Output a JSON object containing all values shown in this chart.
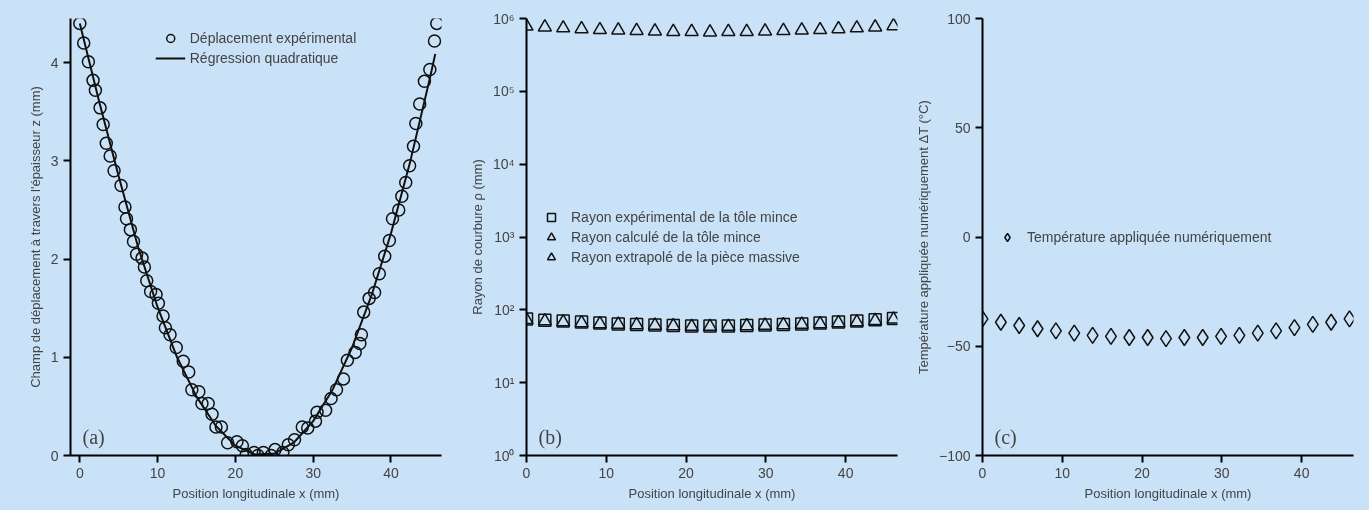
{
  "chart_data": [
    {
      "type": "scatter",
      "xlabel": "Position longitudinale x (mm)",
      "ylabel": "Champ de déplacement à travers l'épaisseur z (mm)",
      "annotations": [
        "(a)"
      ],
      "xlim": [
        -1.2,
        46.5
      ],
      "ylim": [
        0,
        4.45
      ],
      "xticks": [
        0,
        10,
        20,
        30,
        40
      ],
      "yticks": [
        0,
        1,
        2,
        3,
        4
      ],
      "grid": false,
      "legend": "top",
      "series": [
        {
          "name": "Déplacement expérimental",
          "marker": "circle",
          "color": "#111111",
          "x": [
            0,
            0.5,
            1.1,
            1.7,
            2.0,
            2.6,
            3.0,
            3.4,
            3.9,
            4.4,
            5.3,
            5.8,
            6.0,
            6.5,
            6.9,
            7.3,
            8.0,
            8.3,
            8.6,
            9.1,
            9.8,
            10.1,
            10.7,
            11.0,
            11.6,
            12.4,
            13.3,
            14.0,
            14.4,
            15.3,
            15.7,
            16.5,
            17.0,
            17.5,
            18.2,
            19.0,
            20.2,
            20.9,
            21.4,
            22.4,
            22.9,
            23.6,
            24.6,
            25.1,
            26.1,
            26.8,
            27.6,
            28.6,
            29.3,
            30.3,
            30.5,
            31.6,
            32.3,
            33.0,
            33.9,
            34.4,
            35.4,
            36.0,
            36.2,
            36.5,
            37.2,
            37.9,
            38.5,
            39.2,
            39.8,
            40.2,
            41.0,
            41.4,
            41.9,
            42.4,
            42.9,
            43.2,
            43.7,
            44.3,
            45.0,
            45.6,
            45.9
          ],
          "values": [
            4.4,
            4.2,
            4.01,
            3.82,
            3.72,
            3.54,
            3.37,
            3.18,
            3.05,
            2.9,
            2.75,
            2.53,
            2.41,
            2.3,
            2.18,
            2.05,
            2.01,
            1.92,
            1.78,
            1.67,
            1.64,
            1.55,
            1.42,
            1.3,
            1.23,
            1.1,
            0.96,
            0.85,
            0.67,
            0.65,
            0.53,
            0.53,
            0.42,
            0.29,
            0.29,
            0.13,
            0.14,
            0.1,
            0.01,
            0.03,
            0,
            0.03,
            0,
            0.06,
            0.03,
            0.11,
            0.16,
            0.29,
            0.28,
            0.35,
            0.44,
            0.46,
            0.58,
            0.67,
            0.78,
            0.97,
            1.05,
            1.14,
            1.23,
            1.46,
            1.6,
            1.66,
            1.85,
            2.03,
            2.19,
            2.41,
            2.5,
            2.64,
            2.78,
            2.95,
            3.15,
            3.38,
            3.58,
            3.81,
            3.93,
            4.22,
            4.4
          ]
        },
        {
          "name": "Régression quadratique",
          "type": "line",
          "line_style": "solid",
          "color": "#111111",
          "x": [
            0,
            2.5,
            5,
            7.5,
            10,
            12.5,
            15,
            17.5,
            20,
            22.5,
            25,
            27.5,
            30,
            32.5,
            35,
            37.5,
            40,
            42.5,
            45,
            45.7
          ],
          "values": [
            4.4,
            3.6,
            2.84,
            2.12,
            1.51,
            1.0,
            0.6,
            0.3,
            0.1,
            0.01,
            0.02,
            0.13,
            0.35,
            0.67,
            1.1,
            1.63,
            2.26,
            3.0,
            3.84,
            4.09
          ]
        }
      ]
    },
    {
      "type": "scatter",
      "xlabel": "Position longitudinale x (mm)",
      "ylabel": "Rayon de courbure ρ (mm)",
      "annotations": [
        "(b)"
      ],
      "log": "y",
      "xlim": [
        0,
        46.5
      ],
      "ylim": [
        1,
        1000000
      ],
      "xticks": [
        0,
        10,
        20,
        30,
        40
      ],
      "yticks": [
        {
          "value": 1,
          "label": "10⁰"
        },
        {
          "value": 10,
          "label": "10¹"
        },
        {
          "value": 100,
          "label": "10²"
        },
        {
          "value": 1000,
          "label": "10³"
        },
        {
          "value": 10000,
          "label": "10⁴"
        },
        {
          "value": 100000,
          "label": "10⁵"
        },
        {
          "value": 1000000,
          "label": "10⁶"
        }
      ],
      "grid": false,
      "legend": "left",
      "x": [
        0,
        2.3,
        4.6,
        6.9,
        9.2,
        11.5,
        13.8,
        16.1,
        18.4,
        20.7,
        23.0,
        25.3,
        27.6,
        29.9,
        32.2,
        34.5,
        36.8,
        39.1,
        41.4,
        43.7,
        46.0
      ],
      "series": [
        {
          "name": "Rayon expérimental de la tôle mince",
          "marker": "square",
          "color": "#111111",
          "values": [
            75,
            72,
            70,
            68,
            66,
            64,
            63,
            62,
            61,
            60,
            60,
            60,
            61,
            62,
            63,
            64,
            66,
            68,
            70,
            73,
            76
          ]
        },
        {
          "name": "Rayon calculé de la tôle mince",
          "marker": "triangle",
          "color": "#111111",
          "values": [
            73,
            70,
            68,
            66,
            64,
            63,
            62,
            61,
            60,
            59,
            59,
            59,
            60,
            61,
            62,
            63,
            64,
            66,
            68,
            71,
            74
          ]
        },
        {
          "name": "Rayon extrapolé de la pièce massive",
          "marker": "triangle",
          "color": "#111111",
          "values": [
            780000,
            760000,
            740000,
            720000,
            700000,
            690000,
            680000,
            670000,
            660000,
            660000,
            650000,
            660000,
            660000,
            670000,
            680000,
            690000,
            700000,
            720000,
            740000,
            760000,
            790000
          ]
        }
      ]
    },
    {
      "type": "scatter",
      "xlabel": "Position longitudinale x (mm)",
      "ylabel": "Température appliquée numériquement ΔT (°C)",
      "annotations": [
        "(c)"
      ],
      "xlim": [
        0,
        46.5
      ],
      "ylim": [
        -100,
        100
      ],
      "xticks": [
        0,
        10,
        20,
        30,
        40
      ],
      "yticks": [
        -100,
        -50,
        0,
        50,
        100
      ],
      "grid": false,
      "legend": "left",
      "x": [
        0,
        2.3,
        4.6,
        6.9,
        9.2,
        11.5,
        13.8,
        16.1,
        18.4,
        20.7,
        23.0,
        25.3,
        27.6,
        29.9,
        32.2,
        34.5,
        36.8,
        39.1,
        41.4,
        43.7,
        46.0
      ],
      "series": [
        {
          "name": "Température appliquée numériquement",
          "marker": "diamond",
          "color": "#111111",
          "values": [
            -37.5,
            -39,
            -40.5,
            -42,
            -43,
            -44,
            -45,
            -45.5,
            -46,
            -46,
            -46.5,
            -46,
            -46,
            -45.5,
            -45,
            -44,
            -43,
            -41.5,
            -40,
            -39,
            -37.5
          ]
        }
      ]
    }
  ]
}
